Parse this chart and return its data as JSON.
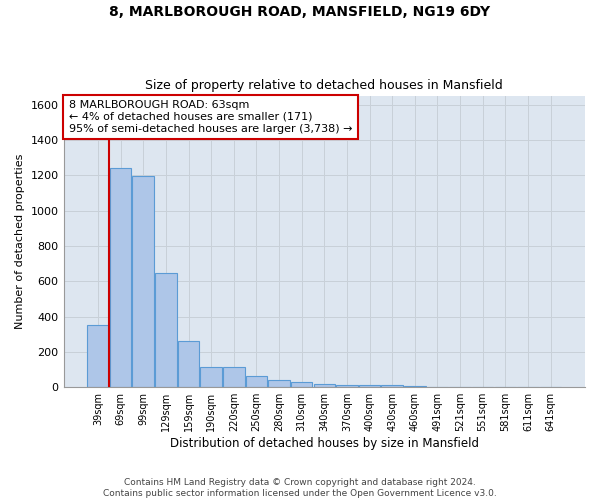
{
  "title_line1": "8, MARLBOROUGH ROAD, MANSFIELD, NG19 6DY",
  "title_line2": "Size of property relative to detached houses in Mansfield",
  "xlabel": "Distribution of detached houses by size in Mansfield",
  "ylabel": "Number of detached properties",
  "categories": [
    "39sqm",
    "69sqm",
    "99sqm",
    "129sqm",
    "159sqm",
    "190sqm",
    "220sqm",
    "250sqm",
    "280sqm",
    "310sqm",
    "340sqm",
    "370sqm",
    "400sqm",
    "430sqm",
    "460sqm",
    "491sqm",
    "521sqm",
    "551sqm",
    "581sqm",
    "611sqm",
    "641sqm"
  ],
  "values": [
    355,
    1240,
    1195,
    648,
    262,
    112,
    112,
    65,
    40,
    30,
    20,
    15,
    15,
    10,
    8,
    0,
    0,
    0,
    0,
    0,
    0
  ],
  "bar_color": "#aec6e8",
  "bar_edge_color": "#5b9bd5",
  "subject_line_color": "#cc0000",
  "annotation_text": "8 MARLBOROUGH ROAD: 63sqm\n← 4% of detached houses are smaller (171)\n95% of semi-detached houses are larger (3,738) →",
  "annotation_box_color": "#ffffff",
  "annotation_box_edge_color": "#cc0000",
  "ylim": [
    0,
    1650
  ],
  "yticks": [
    0,
    200,
    400,
    600,
    800,
    1000,
    1200,
    1400,
    1600
  ],
  "grid_color": "#c8d0d8",
  "bg_color": "#dde6f0",
  "fig_bg_color": "#ffffff",
  "footer_text": "Contains HM Land Registry data © Crown copyright and database right 2024.\nContains public sector information licensed under the Open Government Licence v3.0."
}
